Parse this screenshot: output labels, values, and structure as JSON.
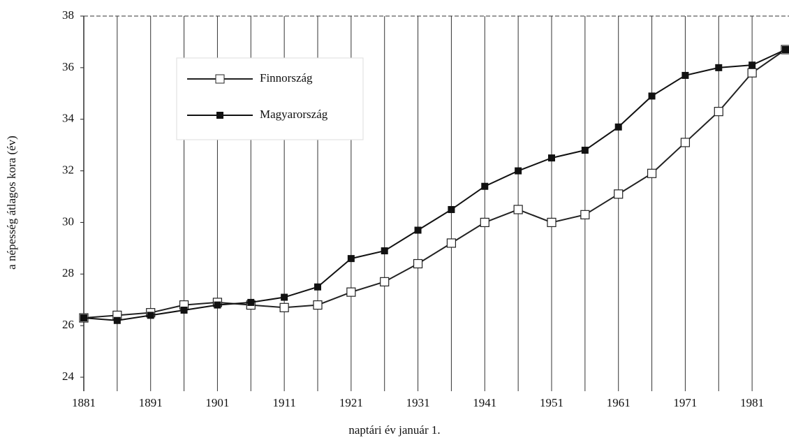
{
  "chart_data": {
    "type": "line",
    "ylabel": "a népesség átlagos kora (év)",
    "xlabel": "naptári év január 1.",
    "x": [
      1881,
      1886,
      1891,
      1896,
      1901,
      1906,
      1911,
      1916,
      1921,
      1926,
      1931,
      1936,
      1941,
      1946,
      1951,
      1956,
      1961,
      1966,
      1971,
      1976,
      1981,
      1986
    ],
    "series": [
      {
        "name": "Finnország",
        "color": "#222",
        "marker": "open-square",
        "values": [
          26.3,
          26.4,
          26.5,
          26.8,
          26.9,
          26.8,
          26.7,
          26.8,
          27.3,
          27.7,
          28.4,
          29.2,
          30.0,
          30.5,
          30.0,
          30.3,
          31.1,
          31.9,
          33.1,
          34.3,
          35.8,
          36.7
        ]
      },
      {
        "name": "Magyarország",
        "color": "#111",
        "marker": "filled-square",
        "values": [
          26.3,
          26.2,
          26.4,
          26.6,
          26.8,
          26.9,
          27.1,
          27.5,
          28.6,
          28.9,
          29.7,
          30.5,
          31.4,
          32.0,
          32.5,
          32.8,
          33.7,
          34.9,
          35.7,
          36.0,
          36.1,
          36.7
        ]
      }
    ],
    "xlim": [
      1881,
      1986
    ],
    "xticks": [
      1881,
      1891,
      1901,
      1911,
      1921,
      1931,
      1941,
      1951,
      1961,
      1971,
      1981
    ],
    "xminor": [
      1886,
      1896,
      1906,
      1916,
      1926,
      1936,
      1946,
      1956,
      1966,
      1976
    ],
    "ylim": [
      24,
      38
    ],
    "yticks": [
      24,
      26,
      28,
      30,
      32,
      34,
      36,
      38
    ],
    "xgrid": true,
    "legend": "upper-left"
  }
}
